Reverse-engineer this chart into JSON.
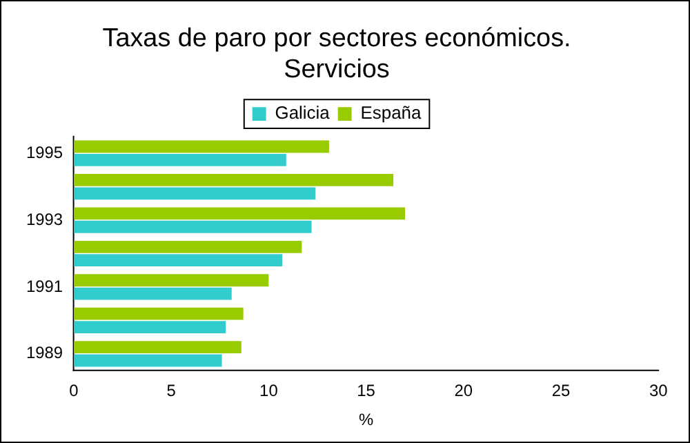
{
  "chart_data": {
    "type": "bar",
    "orientation": "horizontal",
    "title": "Taxas de paro por sectores económicos.\nServicios",
    "xlabel": "%",
    "categories": [
      "1995",
      null,
      "1993",
      null,
      "1991",
      null,
      "1989"
    ],
    "series": [
      {
        "name": "Galicia",
        "color": "#33cccc",
        "values": [
          10.9,
          12.4,
          12.2,
          10.7,
          8.1,
          7.8,
          7.6
        ]
      },
      {
        "name": "España",
        "color": "#99cc00",
        "values": [
          13.1,
          16.4,
          17.0,
          11.7,
          10.0,
          8.7,
          8.6
        ]
      }
    ],
    "xlim": [
      0,
      30
    ],
    "xticks": [
      0,
      5,
      10,
      15,
      20,
      25,
      30
    ],
    "grid": false,
    "legend": "top"
  }
}
